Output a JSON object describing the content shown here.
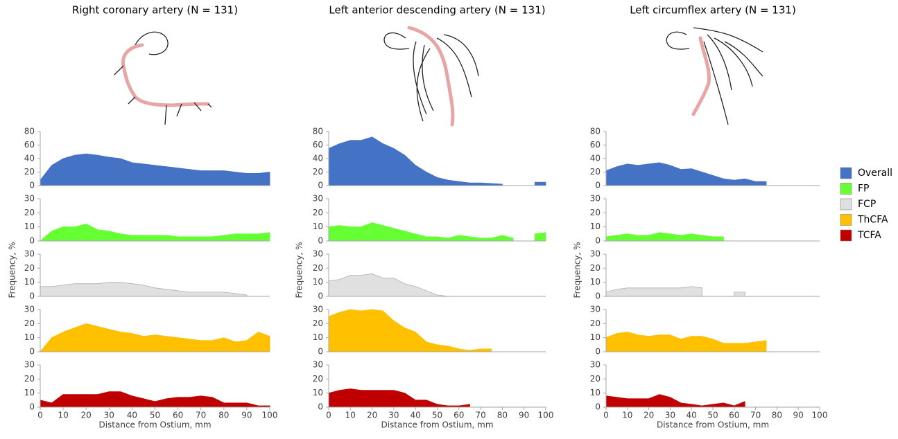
{
  "legend": {
    "position": "right",
    "series": [
      {
        "name": "Overall",
        "color": "#4472c4"
      },
      {
        "name": "FP",
        "color": "#66ff33"
      },
      {
        "name": "FCP",
        "color": "#e0e0e0"
      },
      {
        "name": "ThCFA",
        "color": "#ffc000"
      },
      {
        "name": "TCFA",
        "color": "#c00000"
      }
    ]
  },
  "chart_data": [
    {
      "type": "area",
      "title": "Right coronary artery (N = 131)",
      "xlabel": "Distance from Ostium, mm",
      "ylabel": "Frequency, %",
      "xlim": [
        0,
        100
      ],
      "xticks": [
        0,
        10,
        20,
        30,
        40,
        50,
        60,
        70,
        80,
        90,
        100
      ],
      "x": [
        0,
        5,
        10,
        15,
        20,
        25,
        30,
        35,
        40,
        45,
        50,
        55,
        60,
        65,
        70,
        75,
        80,
        85,
        90,
        95,
        100
      ],
      "panels": [
        {
          "ylim": [
            0,
            80
          ],
          "yticks": [
            0,
            20,
            40,
            60,
            80
          ],
          "values": [
            8,
            30,
            40,
            45,
            47,
            45,
            42,
            40,
            34,
            32,
            30,
            28,
            26,
            24,
            22,
            22,
            22,
            20,
            18,
            18,
            20
          ]
        },
        {
          "ylim": [
            0,
            30
          ],
          "yticks": [
            0,
            10,
            20,
            30
          ],
          "values": [
            0,
            7,
            10,
            10,
            12,
            8,
            7,
            5,
            4,
            4,
            4,
            4,
            3,
            3,
            3,
            3,
            4,
            5,
            5,
            5,
            6
          ]
        },
        {
          "ylim": [
            0,
            30
          ],
          "yticks": [
            0,
            10,
            20,
            30
          ],
          "values": [
            7,
            7,
            8,
            9,
            9,
            9,
            10,
            10,
            9,
            8,
            6,
            5,
            4,
            3,
            3,
            3,
            3,
            2,
            1,
            null,
            null
          ]
        },
        {
          "ylim": [
            0,
            30
          ],
          "yticks": [
            0,
            10,
            20,
            30
          ],
          "values": [
            0,
            10,
            14,
            17,
            20,
            18,
            16,
            14,
            13,
            11,
            12,
            11,
            10,
            9,
            8,
            8,
            10,
            7,
            8,
            14,
            11
          ]
        },
        {
          "ylim": [
            0,
            30
          ],
          "yticks": [
            0,
            10,
            20,
            30
          ],
          "values": [
            5,
            3,
            9,
            9,
            9,
            9,
            11,
            11,
            8,
            6,
            4,
            6,
            7,
            7,
            8,
            7,
            3,
            3,
            3,
            1,
            1
          ]
        }
      ]
    },
    {
      "type": "area",
      "title": "Left anterior descending artery (N = 131)",
      "xlabel": "Distance from Ostium, mm",
      "ylabel": "Frequency, %",
      "xlim": [
        0,
        100
      ],
      "xticks": [
        0,
        10,
        20,
        30,
        40,
        50,
        60,
        70,
        80,
        90,
        100
      ],
      "x": [
        0,
        5,
        10,
        15,
        20,
        25,
        30,
        35,
        40,
        45,
        50,
        55,
        60,
        65,
        70,
        75,
        80,
        85,
        90,
        95,
        100
      ],
      "panels": [
        {
          "ylim": [
            0,
            80
          ],
          "yticks": [
            0,
            20,
            40,
            60,
            80
          ],
          "values": [
            55,
            62,
            67,
            67,
            72,
            62,
            55,
            45,
            30,
            20,
            12,
            8,
            6,
            4,
            4,
            3,
            2,
            null,
            null,
            5,
            5
          ]
        },
        {
          "ylim": [
            0,
            30
          ],
          "yticks": [
            0,
            10,
            20,
            30
          ],
          "values": [
            10,
            11,
            10,
            10,
            13,
            11,
            9,
            7,
            5,
            3,
            3,
            2,
            4,
            3,
            2,
            2,
            4,
            2,
            null,
            5,
            6
          ]
        },
        {
          "ylim": [
            0,
            30
          ],
          "yticks": [
            0,
            10,
            20,
            30
          ],
          "values": [
            11,
            12,
            15,
            15,
            16,
            13,
            13,
            9,
            7,
            4,
            1,
            0,
            null,
            null,
            null,
            null,
            null,
            null,
            null,
            null,
            null
          ]
        },
        {
          "ylim": [
            0,
            30
          ],
          "yticks": [
            0,
            10,
            20,
            30
          ],
          "values": [
            25,
            28,
            30,
            29,
            30,
            29,
            22,
            17,
            14,
            7,
            5,
            4,
            2,
            1,
            2,
            2,
            null,
            null,
            null,
            null,
            null
          ]
        },
        {
          "ylim": [
            0,
            30
          ],
          "yticks": [
            0,
            10,
            20,
            30
          ],
          "values": [
            10,
            12,
            13,
            12,
            12,
            12,
            12,
            10,
            5,
            5,
            2,
            1,
            1,
            2,
            null,
            null,
            null,
            null,
            null,
            null,
            null
          ]
        }
      ]
    },
    {
      "type": "area",
      "title": "Left circumflex artery (N = 131)",
      "xlabel": "Distance from Ostium, mm",
      "ylabel": "Frequency, %",
      "xlim": [
        0,
        100
      ],
      "xticks": [
        0,
        10,
        20,
        30,
        40,
        50,
        60,
        70,
        80,
        90,
        100
      ],
      "x": [
        0,
        5,
        10,
        15,
        20,
        25,
        30,
        35,
        40,
        45,
        50,
        55,
        60,
        65,
        70,
        75,
        80,
        85,
        90,
        95,
        100
      ],
      "panels": [
        {
          "ylim": [
            0,
            80
          ],
          "yticks": [
            0,
            20,
            40,
            60,
            80
          ],
          "values": [
            22,
            28,
            32,
            30,
            32,
            34,
            30,
            24,
            25,
            20,
            15,
            10,
            8,
            10,
            6,
            6,
            null,
            null,
            null,
            null,
            null
          ]
        },
        {
          "ylim": [
            0,
            30
          ],
          "yticks": [
            0,
            10,
            20,
            30
          ],
          "values": [
            3,
            4,
            5,
            4,
            4,
            6,
            5,
            4,
            5,
            4,
            3,
            3,
            null,
            null,
            null,
            null,
            null,
            null,
            null,
            null,
            null
          ]
        },
        {
          "ylim": [
            0,
            30
          ],
          "yticks": [
            0,
            10,
            20,
            30
          ],
          "values": [
            3,
            5,
            6,
            6,
            6,
            6,
            6,
            6,
            7,
            6,
            null,
            null,
            3,
            3,
            null,
            null,
            null,
            null,
            null,
            null,
            null
          ]
        },
        {
          "ylim": [
            0,
            30
          ],
          "yticks": [
            0,
            10,
            20,
            30
          ],
          "values": [
            10,
            13,
            14,
            12,
            11,
            12,
            12,
            9,
            11,
            11,
            9,
            6,
            6,
            6,
            7,
            8,
            null,
            null,
            null,
            null,
            null
          ]
        },
        {
          "ylim": [
            0,
            30
          ],
          "yticks": [
            0,
            10,
            20,
            30
          ],
          "values": [
            8,
            7,
            6,
            6,
            6,
            9,
            7,
            3,
            2,
            1,
            2,
            3,
            1,
            4,
            null,
            null,
            null,
            null,
            null,
            null,
            null
          ]
        }
      ]
    }
  ]
}
